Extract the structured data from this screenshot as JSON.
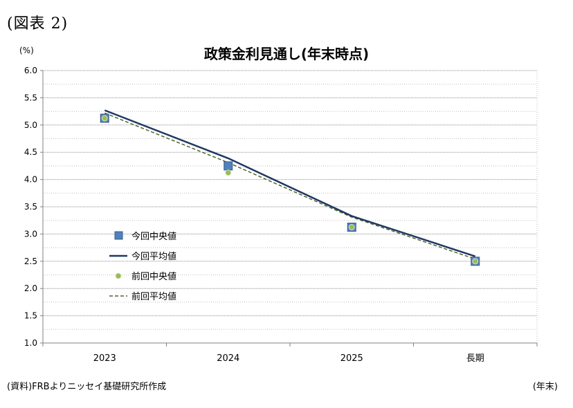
{
  "figure_label": "(図表 2)",
  "source_note": "(資料)FRBよりニッセイ基礎研究所作成",
  "x_unit_note": "(年末)",
  "chart_data": {
    "type": "line",
    "title": "政策金利見通し(年末時点)",
    "ylabel": "(%)",
    "xlabel": "",
    "categories": [
      "2023",
      "2024",
      "2025",
      "長期"
    ],
    "ylim": [
      1.0,
      6.0
    ],
    "yticks": [
      "6.0",
      "5.5",
      "5.0",
      "4.5",
      "4.0",
      "3.5",
      "3.0",
      "2.5",
      "2.0",
      "1.5",
      "1.0"
    ],
    "grid": true,
    "legend_position": "left",
    "series": [
      {
        "name": "今回中央値",
        "style": "square-marker",
        "color": "#4f81bd",
        "values": [
          5.125,
          4.25,
          3.125,
          2.5
        ]
      },
      {
        "name": "今回平均値",
        "style": "solid-line",
        "color": "#1f3864",
        "values": [
          5.27,
          4.39,
          3.33,
          2.59
        ]
      },
      {
        "name": "前回中央値",
        "style": "circle-marker",
        "color": "#9bbb59",
        "values": [
          5.125,
          4.125,
          3.125,
          2.5
        ]
      },
      {
        "name": "前回平均値",
        "style": "dashed-line",
        "color": "#4f6228",
        "values": [
          5.22,
          4.31,
          3.31,
          2.54
        ]
      }
    ]
  }
}
